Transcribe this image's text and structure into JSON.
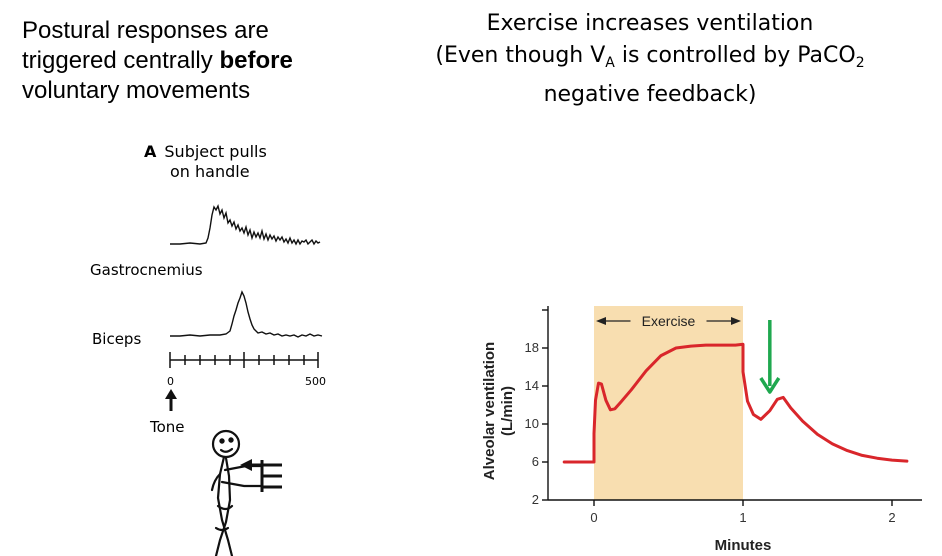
{
  "left_heading": {
    "line1": "Postural responses are",
    "line2_pre": "triggered centrally ",
    "line2_bold": "before",
    "line3": "voluntary movements"
  },
  "right_heading": {
    "line1": "Exercise increases ventilation",
    "line2_pre": "(Even though V",
    "line2_sub1": "A",
    "line2_mid": " is controlled  by PaCO",
    "line2_sub2": "2",
    "line3": "negative feedback)"
  },
  "panel_a": {
    "letter": "A",
    "title_line1": "Subject pulls",
    "title_line2": "on handle",
    "gastrocnemius_label": "Gastrocnemius",
    "biceps_label": "Biceps",
    "scale_start": "0",
    "scale_end": "500",
    "tone_label": "Tone"
  },
  "chart_data": {
    "type": "line",
    "title": "",
    "xlabel": "Minutes",
    "ylabel": "Alveolar ventilation (L/min)",
    "ylabel_line1": "Alveolar ventilation",
    "ylabel_line2": "(L/min)",
    "xlim": [
      -0.2,
      2.2
    ],
    "ylim": [
      2,
      19
    ],
    "xticks": [
      "0",
      "1",
      "2"
    ],
    "yticks": [
      "2",
      "6",
      "10",
      "14",
      "18"
    ],
    "exercise_band": {
      "x_start": 0,
      "x_end": 1,
      "label": "Exercise",
      "color": "#f8deb0"
    },
    "series": [
      {
        "color": "#d9262b",
        "x": [
          -0.2,
          0.0,
          0.0,
          0.01,
          0.03,
          0.05,
          0.08,
          0.11,
          0.14,
          0.18,
          0.25,
          0.35,
          0.45,
          0.55,
          0.65,
          0.75,
          0.85,
          0.95,
          1.0,
          1.0,
          1.03,
          1.07,
          1.12,
          1.18,
          1.23,
          1.27,
          1.32,
          1.4,
          1.5,
          1.6,
          1.7,
          1.8,
          1.9,
          2.0,
          2.1
        ],
        "y": [
          6,
          6,
          9,
          12.5,
          14.3,
          14.2,
          12.5,
          11.5,
          11.6,
          12.3,
          13.6,
          15.6,
          17.2,
          18.0,
          18.2,
          18.3,
          18.3,
          18.3,
          18.4,
          15.5,
          12.4,
          11.0,
          10.5,
          11.4,
          12.6,
          12.8,
          11.7,
          10.3,
          8.9,
          7.9,
          7.2,
          6.7,
          6.4,
          6.2,
          6.1
        ]
      }
    ],
    "annotation_arrow": {
      "x": 1.18,
      "y_from": 18.6,
      "y_to": 14.5,
      "color": "#1fa84f"
    }
  }
}
